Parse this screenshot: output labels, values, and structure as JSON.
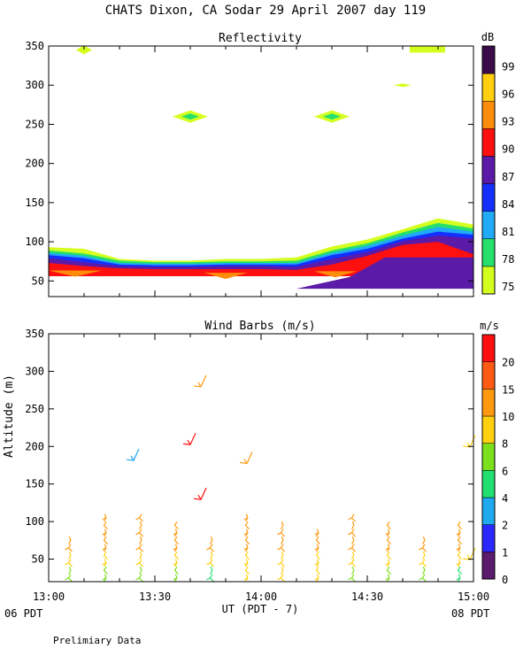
{
  "header": {
    "title": "CHATS Dixon, CA  Sodar  29 April 2007  day 119",
    "footer_note": "Prelimiary Data",
    "start_label": "06 PDT",
    "end_label": "08 PDT",
    "xaxis_label": "UT  (PDT - 7)",
    "yaxis_label": "Altitude (m)"
  },
  "chart_data": [
    {
      "type": "area",
      "title": "Reflectivity",
      "colorbar_label": "dB",
      "colorbar_ticks": [
        "75",
        "78",
        "81",
        "84",
        "87",
        "90",
        "93",
        "96",
        "99"
      ],
      "colorbar_colors": [
        "#d4ff1e",
        "#25e06b",
        "#21aaf5",
        "#1430ff",
        "#5b1aa8",
        "#ff1010",
        "#ff8c0a",
        "#ffcf10",
        "#3a0a4a"
      ],
      "xlim": [
        "13:00",
        "15:00"
      ],
      "x_ticks": [
        "13:00",
        "13:30",
        "14:00",
        "14:30",
        "15:00"
      ],
      "ylim": [
        30,
        350
      ],
      "y_ticks": [
        50,
        100,
        150,
        200,
        250,
        300,
        350
      ],
      "x": [
        "13:00",
        "13:10",
        "13:20",
        "13:30",
        "13:40",
        "13:50",
        "14:00",
        "14:10",
        "14:20",
        "14:30",
        "14:40",
        "14:50",
        "15:00"
      ],
      "layers": [
        {
          "name": "75",
          "color": "#d4ff1e",
          "top": [
            93,
            91,
            78,
            76,
            76,
            78,
            78,
            80,
            94,
            103,
            116,
            130,
            122
          ]
        },
        {
          "name": "78",
          "color": "#25e06b",
          "top": [
            89,
            85,
            76,
            74,
            74,
            75,
            75,
            76,
            89,
            98,
            112,
            124,
            117
          ]
        },
        {
          "name": "81",
          "color": "#21aaf5",
          "top": [
            86,
            82,
            73,
            72,
            72,
            73,
            73,
            73,
            86,
            95,
            108,
            119,
            113
          ]
        },
        {
          "name": "84",
          "color": "#1430ff",
          "top": [
            83,
            79,
            71,
            70,
            70,
            71,
            71,
            71,
            83,
            91,
            104,
            113,
            109
          ]
        },
        {
          "name": "87",
          "color": "#5b1aa8",
          "top": [
            79,
            74,
            69,
            68,
            68,
            69,
            69,
            68,
            78,
            87,
            101,
            108,
            104
          ]
        },
        {
          "name": "90",
          "color": "#ff1010",
          "top": [
            73,
            69,
            66,
            65,
            65,
            65,
            65,
            64,
            71,
            82,
            96,
            100,
            84
          ]
        }
      ],
      "patches": [
        {
          "label": "75",
          "color": "#d4ff1e",
          "time": "13:10",
          "alt": 345
        },
        {
          "label": "75",
          "color": "#d4ff1e",
          "time": "13:40",
          "alt": 260
        },
        {
          "label": "78",
          "color": "#25e06b",
          "time": "13:40",
          "alt": 260
        },
        {
          "label": "75",
          "color": "#d4ff1e",
          "time": "14:20",
          "alt": 260
        },
        {
          "label": "78",
          "color": "#25e06b",
          "time": "14:20",
          "alt": 260
        },
        {
          "label": "75",
          "color": "#d4ff1e",
          "time": "14:40",
          "alt": 300
        },
        {
          "label": "75",
          "color": "#d4ff1e",
          "time": "14:45",
          "alt": 345
        }
      ]
    },
    {
      "type": "scatter",
      "title": "Wind Barbs (m/s)",
      "colorbar_label": "m/s",
      "colorbar_ticks": [
        "0",
        "1",
        "2",
        "4",
        "6",
        "8",
        "10",
        "15",
        "20"
      ],
      "colorbar_colors": [
        "#5b1a6e",
        "#2b27ff",
        "#1faaf0",
        "#22e070",
        "#7ce01c",
        "#ffd010",
        "#ff9a10",
        "#ff5a14",
        "#ff1010"
      ],
      "xlim": [
        "13:00",
        "15:00"
      ],
      "x_ticks": [
        "13:00",
        "13:30",
        "14:00",
        "14:30",
        "15:00"
      ],
      "ylim": [
        20,
        350
      ],
      "y_ticks": [
        50,
        100,
        150,
        200,
        250,
        300,
        350
      ],
      "times": [
        "13:06",
        "13:16",
        "13:26",
        "13:36",
        "13:46",
        "13:56",
        "14:06",
        "14:16",
        "14:26",
        "14:36",
        "14:46",
        "14:56"
      ],
      "columns": [
        {
          "time": "13:06",
          "top": 70,
          "low_color": "#7ce01c"
        },
        {
          "time": "13:16",
          "top": 100,
          "low_color": "#7ce01c"
        },
        {
          "time": "13:26",
          "top": 100,
          "low_color": "#7ce01c"
        },
        {
          "time": "13:36",
          "top": 95,
          "low_color": "#7ce01c"
        },
        {
          "time": "13:46",
          "top": 70,
          "low_color": "#22e070"
        },
        {
          "time": "13:56",
          "top": 100,
          "low_color": "#ffd010"
        },
        {
          "time": "14:06",
          "top": 95,
          "low_color": "#ffd010"
        },
        {
          "time": "14:16",
          "top": 80,
          "low_color": "#ffd010"
        },
        {
          "time": "14:26",
          "top": 100,
          "low_color": "#7ce01c"
        },
        {
          "time": "14:36",
          "top": 90,
          "low_color": "#7ce01c"
        },
        {
          "time": "14:46",
          "top": 70,
          "low_color": "#7ce01c"
        },
        {
          "time": "14:56",
          "top": 95,
          "low_color": "#22e070"
        }
      ],
      "isolated": [
        {
          "time": "13:43",
          "alt": 290,
          "color": "#ff9a10"
        },
        {
          "time": "13:40",
          "alt": 213,
          "color": "#ff1010"
        },
        {
          "time": "13:43",
          "alt": 140,
          "color": "#ff1010"
        },
        {
          "time": "13:24",
          "alt": 192,
          "color": "#1faaf0"
        },
        {
          "time": "13:56",
          "alt": 188,
          "color": "#ff9a10"
        },
        {
          "time": "14:59",
          "alt": 210,
          "color": "#ffd010"
        },
        {
          "time": "14:59",
          "alt": 60,
          "color": "#ffd010"
        }
      ]
    }
  ]
}
